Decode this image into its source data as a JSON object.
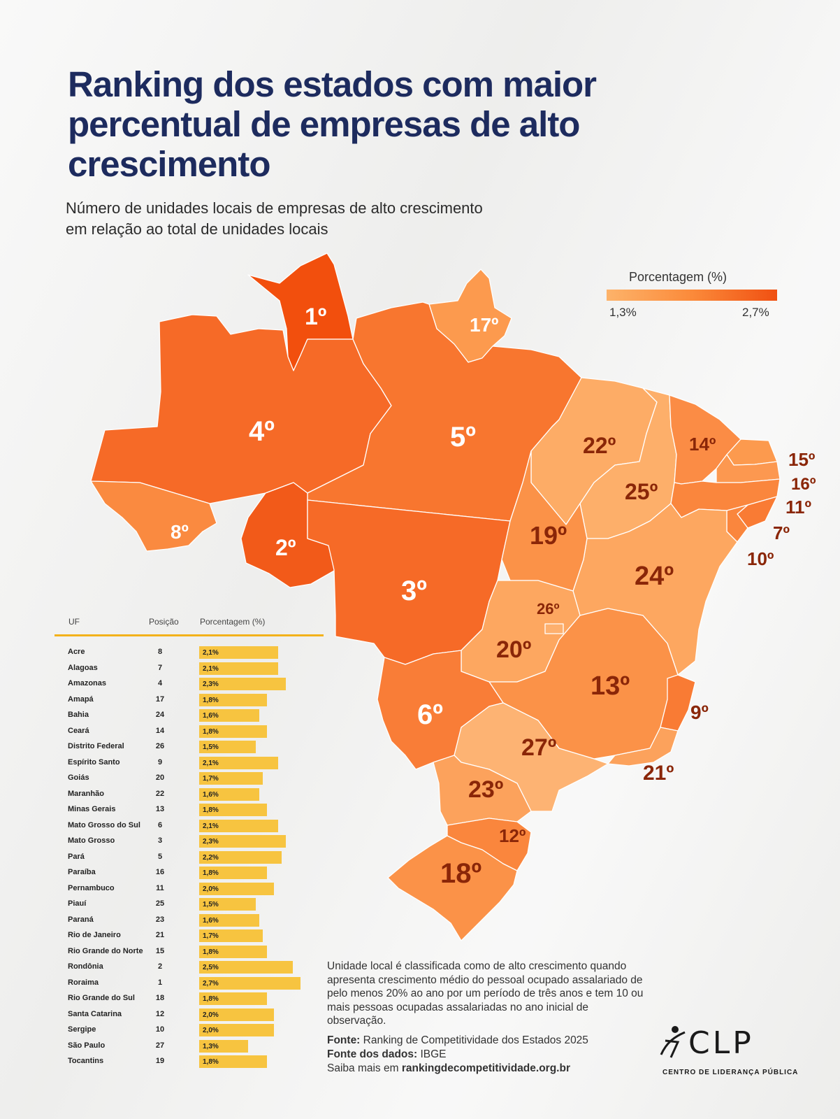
{
  "header": {
    "title": "Ranking dos estados com maior percentual de empresas de alto crescimento",
    "subtitle": "Número de unidades locais de empresas de alto crescimento em relação ao total de unidades locais"
  },
  "legend": {
    "title": "Porcentagem (%)",
    "min_label": "1,3%",
    "max_label": "2,7%",
    "min_color": "#fdb36a",
    "max_color": "#f05012"
  },
  "map": {
    "labels": {
      "RR": "1º",
      "RO": "2º",
      "MT": "3º",
      "AM": "4º",
      "PA": "5º",
      "MS": "6º",
      "AL": "7º",
      "AC": "8º",
      "ES": "9º",
      "SE": "10º",
      "PE": "11º",
      "SC": "12º",
      "MG": "13º",
      "CE": "14º",
      "RN": "15º",
      "PB": "16º",
      "AP": "17º",
      "RS": "18º",
      "TO": "19º",
      "GO": "20º",
      "RJ": "21º",
      "MA": "22º",
      "PR": "23º",
      "BA": "24º",
      "PI": "25º",
      "DF": "26º",
      "SP": "27º"
    }
  },
  "table": {
    "headers": {
      "uf": "UF",
      "position": "Posição",
      "percentage": "Porcentagem (%)"
    },
    "max_value": 2.7,
    "bar_color": "#f7c440",
    "rows": [
      {
        "uf": "Acre",
        "position": "8",
        "value": 2.1,
        "label": "2,1%"
      },
      {
        "uf": "Alagoas",
        "position": "7",
        "value": 2.1,
        "label": "2,1%"
      },
      {
        "uf": "Amazonas",
        "position": "4",
        "value": 2.3,
        "label": "2,3%"
      },
      {
        "uf": "Amapá",
        "position": "17",
        "value": 1.8,
        "label": "1,8%"
      },
      {
        "uf": "Bahia",
        "position": "24",
        "value": 1.6,
        "label": "1,6%"
      },
      {
        "uf": "Ceará",
        "position": "14",
        "value": 1.8,
        "label": "1,8%"
      },
      {
        "uf": "Distrito Federal",
        "position": "26",
        "value": 1.5,
        "label": "1,5%"
      },
      {
        "uf": "Espírito Santo",
        "position": "9",
        "value": 2.1,
        "label": "2,1%"
      },
      {
        "uf": "Goiás",
        "position": "20",
        "value": 1.7,
        "label": "1,7%"
      },
      {
        "uf": "Maranhão",
        "position": "22",
        "value": 1.6,
        "label": "1,6%"
      },
      {
        "uf": "Minas Gerais",
        "position": "13",
        "value": 1.8,
        "label": "1,8%"
      },
      {
        "uf": "Mato Grosso do Sul",
        "position": "6",
        "value": 2.1,
        "label": "2,1%"
      },
      {
        "uf": "Mato Grosso",
        "position": "3",
        "value": 2.3,
        "label": "2,3%"
      },
      {
        "uf": "Pará",
        "position": "5",
        "value": 2.2,
        "label": "2,2%"
      },
      {
        "uf": "Paraíba",
        "position": "16",
        "value": 1.8,
        "label": "1,8%"
      },
      {
        "uf": "Pernambuco",
        "position": "11",
        "value": 2.0,
        "label": "2,0%"
      },
      {
        "uf": "Piauí",
        "position": "25",
        "value": 1.5,
        "label": "1,5%"
      },
      {
        "uf": "Paraná",
        "position": "23",
        "value": 1.6,
        "label": "1,6%"
      },
      {
        "uf": "Rio de Janeiro",
        "position": "21",
        "value": 1.7,
        "label": "1,7%"
      },
      {
        "uf": "Rio Grande do Norte",
        "position": "15",
        "value": 1.8,
        "label": "1,8%"
      },
      {
        "uf": "Rondônia",
        "position": "2",
        "value": 2.5,
        "label": "2,5%"
      },
      {
        "uf": "Roraima",
        "position": "1",
        "value": 2.7,
        "label": "2,7%"
      },
      {
        "uf": "Rio Grande do Sul",
        "position": "18",
        "value": 1.8,
        "label": "1,8%"
      },
      {
        "uf": "Santa Catarina",
        "position": "12",
        "value": 2.0,
        "label": "2,0%"
      },
      {
        "uf": "Sergipe",
        "position": "10",
        "value": 2.0,
        "label": "2,0%"
      },
      {
        "uf": "São Paulo",
        "position": "27",
        "value": 1.3,
        "label": "1,3%"
      },
      {
        "uf": "Tocantins",
        "position": "19",
        "value": 1.8,
        "label": "1,8%"
      }
    ]
  },
  "footer": {
    "note": "Unidade local é classificada como de alto crescimento quando apresenta crescimento médio do pessoal ocupado assalariado de pelo menos 20% ao ano por um período de três anos e tem 10 ou mais pessoas ocupadas assalariadas no ano inicial de observação.",
    "source_label": "Fonte:",
    "source_value": " Ranking de Competitividade dos Estados 2025",
    "data_source_label": "Fonte dos dados:",
    "data_source_value": " IBGE",
    "more_prefix": "Saiba mais em ",
    "more_link": "rankingdecompetitividade.org.br"
  },
  "logo": {
    "text": "CLP",
    "subtitle": "CENTRO DE LIDERANÇA PÚBLICA"
  }
}
